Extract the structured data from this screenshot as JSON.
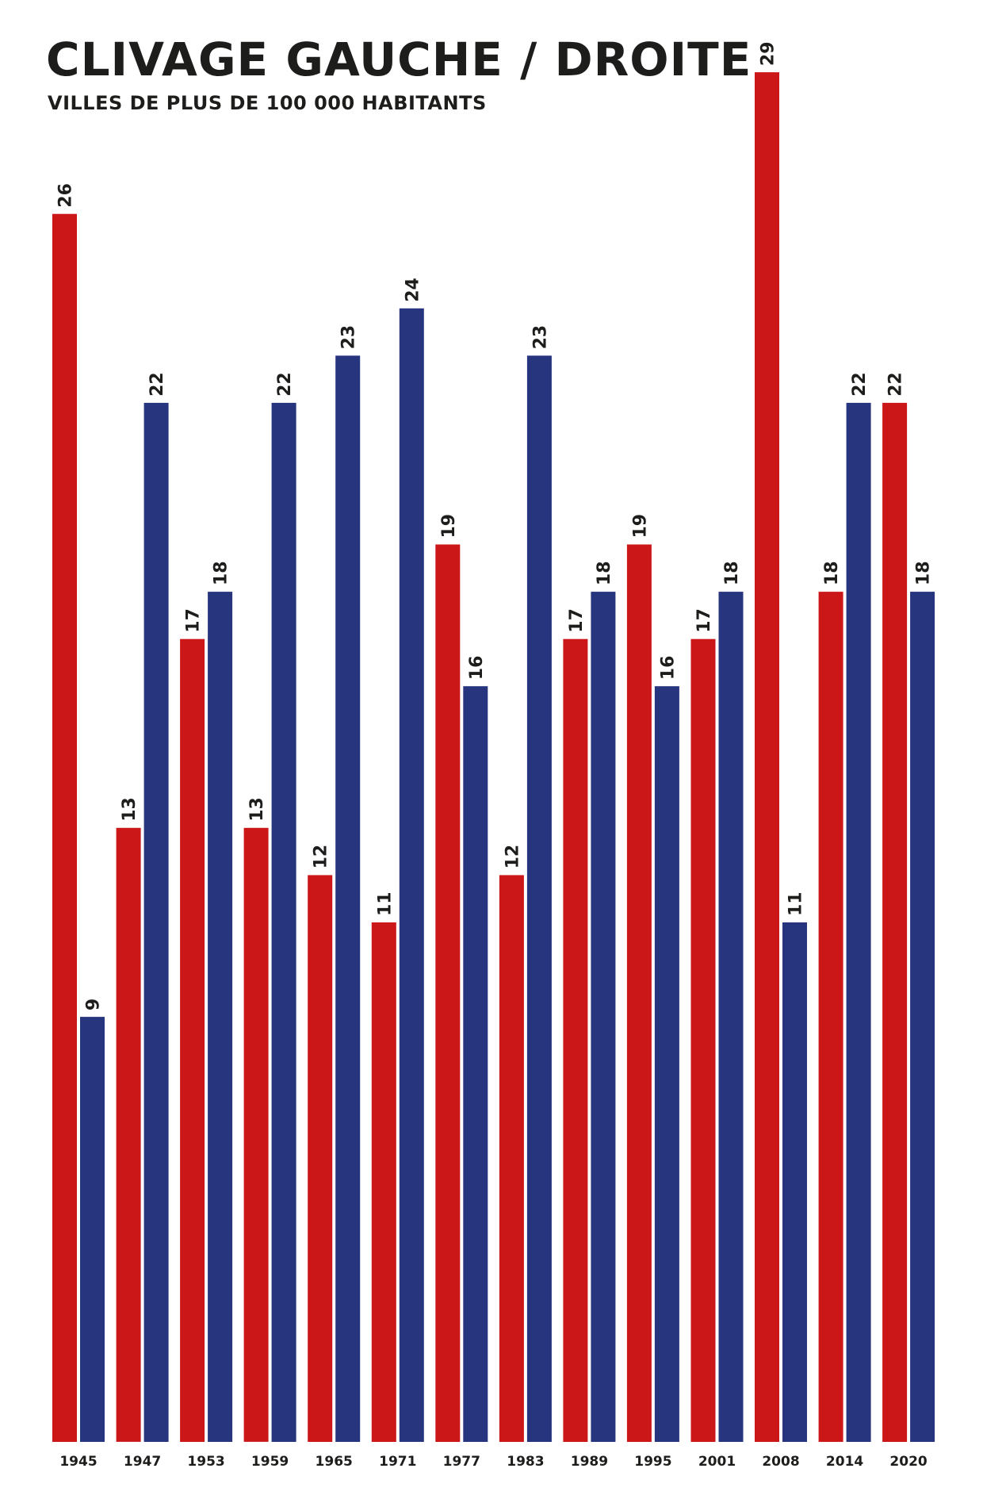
{
  "header": {
    "title": "CLIVAGE GAUCHE / DROITE",
    "subtitle": "VILLES DE PLUS DE 100 000 HABITANTS"
  },
  "colors": {
    "left": "#cc1719",
    "right": "#27347e",
    "text": "#1d1d1b"
  },
  "chart_data": {
    "type": "bar",
    "title": "CLIVAGE GAUCHE / DROITE",
    "subtitle": "VILLES DE PLUS DE 100 000 HABITANTS",
    "xlabel": "",
    "ylabel": "",
    "categories": [
      "1945",
      "1947",
      "1953",
      "1959",
      "1965",
      "1971",
      "1977",
      "1983",
      "1989",
      "1995",
      "2001",
      "2008",
      "2014",
      "2020"
    ],
    "series": [
      {
        "color": "#cc1719",
        "values": [
          26,
          13,
          17,
          13,
          12,
          11,
          19,
          12,
          17,
          19,
          17,
          29,
          18,
          22
        ]
      },
      {
        "color": "#27347e",
        "values": [
          9,
          22,
          18,
          22,
          23,
          24,
          16,
          23,
          18,
          16,
          18,
          11,
          22,
          18
        ]
      }
    ],
    "ylim": [
      0,
      29
    ],
    "grid": false,
    "legend": "none",
    "data_labels": "rotated, above bars"
  }
}
